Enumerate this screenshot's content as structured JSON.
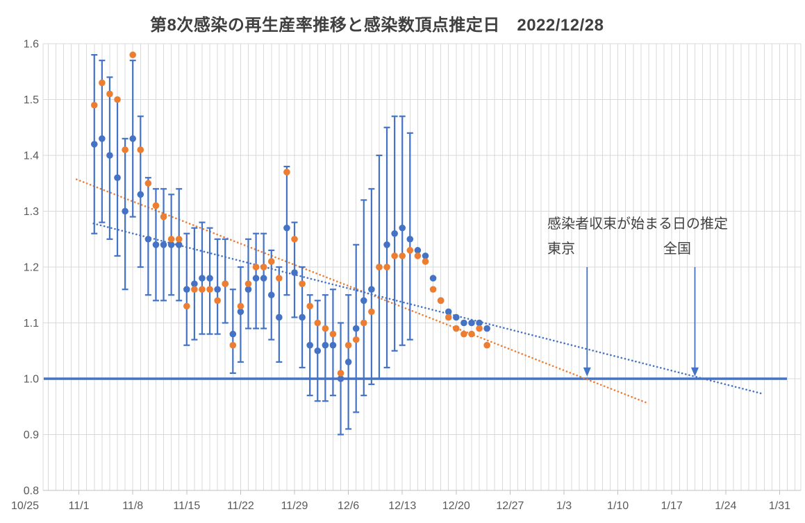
{
  "title": "第8次感染の再生産率推移と感染数頂点推定日　2022/12/28",
  "annotation": {
    "heading": "感染者収束が始まる日の推定",
    "tokyo_label": "東京",
    "national_label": "全国"
  },
  "colors": {
    "blue": "#4472C4",
    "orange": "#ED7D31",
    "grid": "#D9D9D9",
    "axis": "#BFBFBF",
    "axis_text": "#595959",
    "title_text": "#3F3F3F",
    "annotation_text": "#404040",
    "background": "#FFFFFF"
  },
  "chart_data": {
    "type": "scatter",
    "title": "第8次感染の再生産率推移と感染数頂点推定日　2022/12/28",
    "xlabel": "",
    "ylabel": "",
    "grid": true,
    "legend": "none",
    "baseline": 1.0,
    "x_axis": {
      "start": "10/25",
      "end": "1/31",
      "tick_labels": [
        "10/25",
        "11/1",
        "11/8",
        "11/15",
        "11/22",
        "11/29",
        "12/6",
        "12/13",
        "12/20",
        "12/27",
        "1/3",
        "1/10",
        "1/17",
        "1/24",
        "1/31"
      ]
    },
    "y_axis": {
      "min": 0.8,
      "max": 1.6,
      "step": 0.1,
      "tick_labels": [
        "0.8",
        "0.9",
        "1.0",
        "1.1",
        "1.2",
        "1.3",
        "1.4",
        "1.5",
        "1.6"
      ]
    },
    "series_meta": [
      {
        "key": "national",
        "name": "全国",
        "color": "#4472C4",
        "marker": "circle",
        "has_error_bars": true
      },
      {
        "key": "tokyo",
        "name": "東京",
        "color": "#ED7D31",
        "marker": "circle",
        "has_error_bars": false
      }
    ],
    "points": [
      {
        "date": "11/3",
        "tokyo": 1.49,
        "national": 1.42,
        "lo": 1.26,
        "hi": 1.58
      },
      {
        "date": "11/4",
        "tokyo": 1.53,
        "national": 1.43,
        "lo": 1.28,
        "hi": 1.57
      },
      {
        "date": "11/5",
        "tokyo": 1.51,
        "national": 1.4,
        "lo": 1.25,
        "hi": 1.54
      },
      {
        "date": "11/6",
        "tokyo": 1.5,
        "national": 1.36,
        "lo": 1.22,
        "hi": 1.5
      },
      {
        "date": "11/7",
        "tokyo": 1.41,
        "national": 1.3,
        "lo": 1.16,
        "hi": 1.43
      },
      {
        "date": "11/8",
        "tokyo": 1.58,
        "national": 1.43,
        "lo": 1.29,
        "hi": 1.57
      },
      {
        "date": "11/9",
        "tokyo": 1.41,
        "national": 1.33,
        "lo": 1.2,
        "hi": 1.47
      },
      {
        "date": "11/10",
        "tokyo": 1.35,
        "national": 1.25,
        "lo": 1.15,
        "hi": 1.36
      },
      {
        "date": "11/11",
        "tokyo": 1.31,
        "national": 1.24,
        "lo": 1.14,
        "hi": 1.34
      },
      {
        "date": "11/12",
        "tokyo": 1.29,
        "national": 1.24,
        "lo": 1.14,
        "hi": 1.34
      },
      {
        "date": "11/13",
        "tokyo": 1.25,
        "national": 1.24,
        "lo": 1.15,
        "hi": 1.33
      },
      {
        "date": "11/14",
        "tokyo": 1.25,
        "national": 1.24,
        "lo": 1.14,
        "hi": 1.34
      },
      {
        "date": "11/15",
        "tokyo": 1.13,
        "national": 1.16,
        "lo": 1.06,
        "hi": 1.26
      },
      {
        "date": "11/16",
        "tokyo": 1.16,
        "national": 1.17,
        "lo": 1.07,
        "hi": 1.27
      },
      {
        "date": "11/17",
        "tokyo": 1.16,
        "national": 1.18,
        "lo": 1.08,
        "hi": 1.28
      },
      {
        "date": "11/18",
        "tokyo": 1.16,
        "national": 1.18,
        "lo": 1.08,
        "hi": 1.27
      },
      {
        "date": "11/19",
        "tokyo": 1.14,
        "national": 1.16,
        "lo": 1.08,
        "hi": 1.25
      },
      {
        "date": "11/20",
        "tokyo": 1.17,
        "national": 1.17,
        "lo": 1.1,
        "hi": 1.25
      },
      {
        "date": "11/21",
        "tokyo": 1.06,
        "national": 1.08,
        "lo": 1.01,
        "hi": 1.16
      },
      {
        "date": "11/22",
        "tokyo": 1.13,
        "national": 1.12,
        "lo": 1.03,
        "hi": 1.2
      },
      {
        "date": "11/23",
        "tokyo": 1.17,
        "national": 1.16,
        "lo": 1.09,
        "hi": 1.25
      },
      {
        "date": "11/24",
        "tokyo": 1.2,
        "national": 1.18,
        "lo": 1.09,
        "hi": 1.26
      },
      {
        "date": "11/25",
        "tokyo": 1.2,
        "national": 1.18,
        "lo": 1.09,
        "hi": 1.26
      },
      {
        "date": "11/26",
        "tokyo": 1.21,
        "national": 1.15,
        "lo": 1.07,
        "hi": 1.23
      },
      {
        "date": "11/27",
        "tokyo": 1.18,
        "national": 1.11,
        "lo": 1.03,
        "hi": 1.2
      },
      {
        "date": "11/28",
        "tokyo": 1.37,
        "national": 1.27,
        "lo": 1.15,
        "hi": 1.38
      },
      {
        "date": "11/29",
        "tokyo": 1.25,
        "national": 1.19,
        "lo": 1.11,
        "hi": 1.28
      },
      {
        "date": "11/30",
        "tokyo": 1.17,
        "national": 1.11,
        "lo": 1.02,
        "hi": 1.2
      },
      {
        "date": "12/1",
        "tokyo": 1.13,
        "national": 1.06,
        "lo": 0.97,
        "hi": 1.15
      },
      {
        "date": "12/2",
        "tokyo": 1.1,
        "national": 1.05,
        "lo": 0.96,
        "hi": 1.14
      },
      {
        "date": "12/3",
        "tokyo": 1.09,
        "national": 1.06,
        "lo": 0.96,
        "hi": 1.15
      },
      {
        "date": "12/4",
        "tokyo": 1.08,
        "national": 1.06,
        "lo": 0.97,
        "hi": 1.16
      },
      {
        "date": "12/5",
        "tokyo": 1.01,
        "national": 1.0,
        "lo": 0.9,
        "hi": 1.1
      },
      {
        "date": "12/6",
        "tokyo": 1.06,
        "national": 1.03,
        "lo": 0.91,
        "hi": 1.15
      },
      {
        "date": "12/7",
        "tokyo": 1.07,
        "national": 1.09,
        "lo": 0.94,
        "hi": 1.24
      },
      {
        "date": "12/8",
        "tokyo": 1.1,
        "national": 1.14,
        "lo": 0.97,
        "hi": 1.32
      },
      {
        "date": "12/9",
        "tokyo": 1.12,
        "national": 1.16,
        "lo": 0.99,
        "hi": 1.34
      },
      {
        "date": "12/10",
        "tokyo": 1.2,
        "national": 1.2,
        "lo": 1.0,
        "hi": 1.4
      },
      {
        "date": "12/11",
        "tokyo": 1.2,
        "national": 1.24,
        "lo": 1.02,
        "hi": 1.45
      },
      {
        "date": "12/12",
        "tokyo": 1.22,
        "national": 1.26,
        "lo": 1.05,
        "hi": 1.47
      },
      {
        "date": "12/13",
        "tokyo": 1.22,
        "national": 1.27,
        "lo": 1.06,
        "hi": 1.47
      },
      {
        "date": "12/14",
        "tokyo": 1.23,
        "national": 1.25,
        "lo": 1.07,
        "hi": 1.44
      },
      {
        "date": "12/15",
        "tokyo": 1.22,
        "national": 1.23
      },
      {
        "date": "12/16",
        "tokyo": 1.21,
        "national": 1.22
      },
      {
        "date": "12/17",
        "tokyo": 1.16,
        "national": 1.18
      },
      {
        "date": "12/18",
        "tokyo": 1.14,
        "national": 1.14
      },
      {
        "date": "12/19",
        "tokyo": 1.11,
        "national": 1.12
      },
      {
        "date": "12/20",
        "tokyo": 1.09,
        "national": 1.11
      },
      {
        "date": "12/21",
        "tokyo": 1.08,
        "national": 1.1
      },
      {
        "date": "12/22",
        "tokyo": 1.08,
        "national": 1.1
      },
      {
        "date": "12/23",
        "tokyo": 1.09,
        "national": 1.1
      },
      {
        "date": "12/24",
        "tokyo": 1.06,
        "national": 1.09
      }
    ],
    "trendlines": [
      {
        "series": "東京",
        "color": "#ED7D31",
        "style": "dotted",
        "d1": 6.7,
        "v1": 1.357,
        "d2": 80.9,
        "v2": 0.956,
        "crosses_one_at": "1/6"
      },
      {
        "series": "全国",
        "color": "#4472C4",
        "style": "dotted",
        "d1": 8.9,
        "v1": 1.278,
        "d2": 95.8,
        "v2": 0.973,
        "crosses_one_at": "1/20"
      }
    ],
    "arrows": [
      {
        "label": "東京",
        "date": "1/6",
        "from_value": 1.2,
        "to_value": 1.004
      },
      {
        "label": "全国",
        "date": "1/20",
        "from_value": 1.2,
        "to_value": 1.004
      }
    ]
  }
}
